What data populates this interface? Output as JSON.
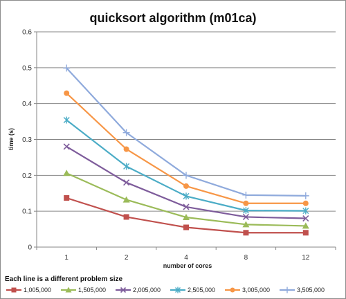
{
  "chart_data": {
    "type": "line",
    "title": "quicksort algorithm (m01ca)",
    "xlabel": "number of cores",
    "ylabel": "time (s)",
    "categories": [
      "1",
      "2",
      "4",
      "8",
      "12"
    ],
    "ylim": [
      0,
      0.6
    ],
    "yticks": [
      "0",
      "0.1",
      "0.2",
      "0.3",
      "0.4",
      "0.5",
      "0.6"
    ],
    "grid": true,
    "legend_position": "bottom",
    "legend_note": "Each line is a different  problem size",
    "series": [
      {
        "name": "1,005,000",
        "values": [
          0.137,
          0.084,
          0.055,
          0.04,
          0.04
        ],
        "color": "#c0504d",
        "marker": "square"
      },
      {
        "name": "1,505,000",
        "values": [
          0.206,
          0.132,
          0.083,
          0.063,
          0.059
        ],
        "color": "#9bbb59",
        "marker": "triangle"
      },
      {
        "name": "2,005,000",
        "values": [
          0.28,
          0.18,
          0.112,
          0.084,
          0.08
        ],
        "color": "#7e5c9b",
        "marker": "x"
      },
      {
        "name": "2,505,000",
        "values": [
          0.354,
          0.225,
          0.142,
          0.102,
          0.101
        ],
        "color": "#4bacc6",
        "marker": "asterisk"
      },
      {
        "name": "3,005,000",
        "values": [
          0.429,
          0.273,
          0.17,
          0.122,
          0.122
        ],
        "color": "#f79646",
        "marker": "circle"
      },
      {
        "name": "3,505,000",
        "values": [
          0.499,
          0.319,
          0.2,
          0.145,
          0.143
        ],
        "color": "#8faadc",
        "marker": "plus"
      }
    ]
  }
}
